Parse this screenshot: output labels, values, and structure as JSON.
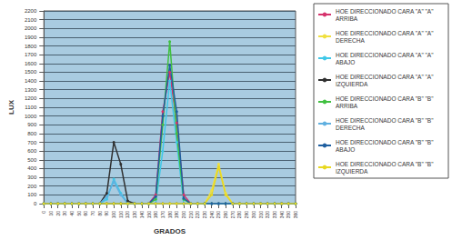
{
  "chart_data": {
    "type": "line",
    "x_label": "GRADOS",
    "y_label": "LUX",
    "categories": [
      "0",
      "10",
      "20",
      "30",
      "40",
      "50",
      "60",
      "70",
      "80",
      "90",
      "100",
      "110",
      "120",
      "130",
      "140",
      "150",
      "160",
      "170",
      "180",
      "190",
      "200",
      "210",
      "220",
      "230",
      "240",
      "250",
      "260",
      "270",
      "280",
      "290",
      "300",
      "310",
      "320",
      "330",
      "340",
      "350",
      "360"
    ],
    "series": [
      {
        "name": "HOE DIRECCIONADO CARA \"A\" \"A\" ARRIBA",
        "color": "#d6336c",
        "values": [
          0,
          0,
          0,
          0,
          0,
          0,
          0,
          0,
          0,
          0,
          0,
          0,
          0,
          0,
          0,
          0,
          100,
          1050,
          1500,
          920,
          100,
          0,
          0,
          0,
          0,
          0,
          0,
          0,
          0,
          0,
          0,
          0,
          0,
          0,
          0,
          0,
          0
        ]
      },
      {
        "name": "HOE DIRECCIONADO CARA \"A\" \"A\" DERECHA",
        "color": "#f0e040",
        "values": [
          0,
          0,
          0,
          0,
          0,
          0,
          0,
          0,
          0,
          0,
          0,
          0,
          0,
          0,
          0,
          0,
          0,
          0,
          0,
          0,
          0,
          0,
          0,
          0,
          150,
          450,
          120,
          0,
          0,
          0,
          0,
          0,
          0,
          0,
          0,
          0,
          0
        ]
      },
      {
        "name": "HOE DIRECCIONADO CARA \"A\" \"A\" ABAJO",
        "color": "#40c8e8",
        "values": [
          0,
          0,
          0,
          0,
          0,
          0,
          0,
          0,
          0,
          50,
          280,
          120,
          0,
          0,
          0,
          0,
          0,
          600,
          1400,
          700,
          0,
          0,
          0,
          0,
          0,
          0,
          0,
          0,
          0,
          0,
          0,
          0,
          0,
          0,
          0,
          0,
          0
        ]
      },
      {
        "name": "HOE DIRECCIONADO CARA \"A\" \"A\" IZQUIERDA",
        "color": "#303030",
        "values": [
          0,
          0,
          0,
          0,
          0,
          0,
          0,
          0,
          0,
          120,
          700,
          450,
          30,
          0,
          0,
          0,
          0,
          0,
          0,
          0,
          0,
          0,
          0,
          0,
          0,
          0,
          0,
          0,
          0,
          0,
          0,
          0,
          0,
          0,
          0,
          0,
          0
        ]
      },
      {
        "name": "HOE DIRECCIONADO CARA \"B\" \"B\" ARRIBA",
        "color": "#40c040",
        "values": [
          0,
          0,
          0,
          0,
          0,
          0,
          0,
          0,
          0,
          0,
          0,
          0,
          0,
          0,
          0,
          0,
          50,
          900,
          1850,
          800,
          50,
          0,
          0,
          0,
          0,
          0,
          0,
          0,
          0,
          0,
          0,
          0,
          0,
          0,
          0,
          0,
          0
        ]
      },
      {
        "name": "HOE DIRECCIONADO CARA \"B\" \"B\" DERECHA",
        "color": "#60b0e0",
        "values": [
          0,
          0,
          0,
          0,
          0,
          0,
          0,
          0,
          0,
          80,
          250,
          100,
          0,
          0,
          0,
          0,
          0,
          0,
          0,
          0,
          0,
          0,
          0,
          0,
          0,
          0,
          0,
          0,
          0,
          0,
          0,
          0,
          0,
          0,
          0,
          0,
          0
        ]
      },
      {
        "name": "HOE DIRECCIONADO CARA \"B\" \"B\" ABAJO",
        "color": "#1f5fa0",
        "values": [
          0,
          0,
          0,
          0,
          0,
          0,
          0,
          0,
          0,
          0,
          0,
          0,
          0,
          0,
          0,
          0,
          80,
          1000,
          1580,
          1050,
          60,
          0,
          0,
          0,
          0,
          0,
          0,
          0,
          0,
          0,
          0,
          0,
          0,
          0,
          0,
          0,
          0
        ]
      },
      {
        "name": "HOE DIRECCIONADO CARA \"B\" \"B\" IZQUIERDA",
        "color": "#e8d820",
        "values": [
          0,
          0,
          0,
          0,
          0,
          0,
          0,
          0,
          0,
          0,
          0,
          0,
          0,
          0,
          0,
          0,
          0,
          0,
          0,
          0,
          0,
          0,
          0,
          0,
          100,
          420,
          100,
          0,
          0,
          0,
          0,
          0,
          0,
          0,
          0,
          0,
          0
        ]
      }
    ],
    "ylim": [
      0,
      2200
    ],
    "yticks": [
      0,
      100,
      200,
      300,
      400,
      500,
      600,
      700,
      800,
      900,
      1000,
      1100,
      1200,
      1300,
      1400,
      1500,
      1600,
      1700,
      1800,
      1900,
      2000,
      2100,
      2200
    ],
    "grid": true,
    "legend": "right",
    "marker": "circle"
  }
}
